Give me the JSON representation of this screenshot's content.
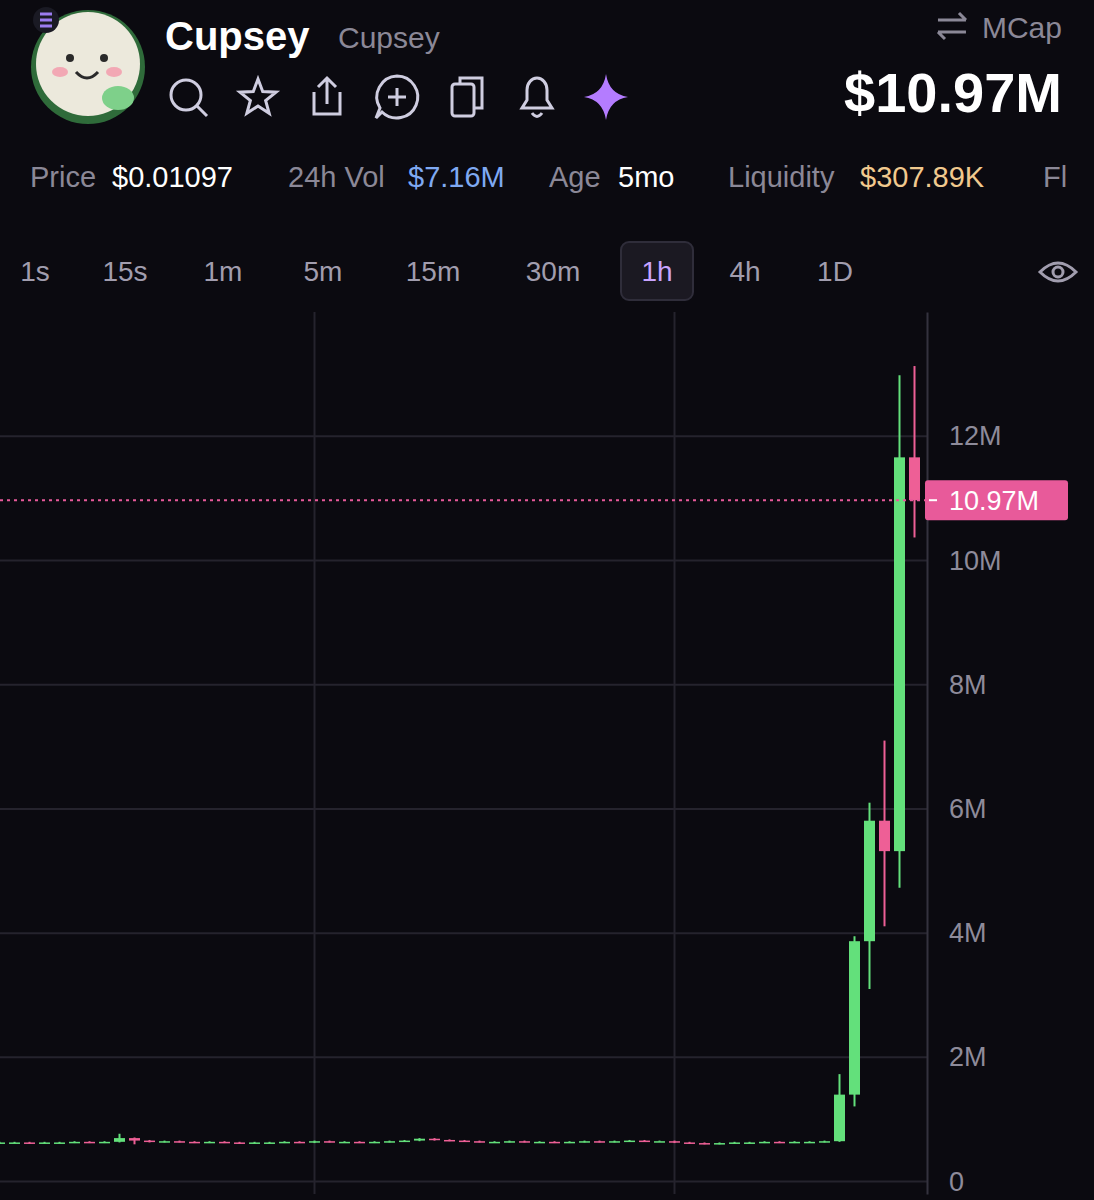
{
  "header": {
    "name": "Cupsey",
    "symbol": "Cupsey",
    "mcap_label": "MCap",
    "mcap": "$10.97M"
  },
  "stats": [
    {
      "label": "Price",
      "value": "$0.01097"
    },
    {
      "label": "24h Vol",
      "value": "$7.16M"
    },
    {
      "label": "Age",
      "value": "5mo"
    },
    {
      "label": "Liquidity",
      "value": "$307.89K"
    },
    {
      "label": "Fl"
    }
  ],
  "timeframes": {
    "options": [
      "1s",
      "15s",
      "1m",
      "5m",
      "15m",
      "30m",
      "1h",
      "4h",
      "1D"
    ],
    "selected": "1h"
  },
  "chart_data": {
    "type": "candlestick",
    "categories": [
      null,
      null,
      null,
      null,
      null,
      null,
      null,
      null,
      null,
      null,
      null,
      null,
      null,
      null,
      null,
      null,
      null,
      null,
      null,
      null,
      null,
      null,
      null,
      null,
      null,
      null,
      null,
      null,
      null,
      null,
      null,
      null,
      null,
      null,
      null,
      null,
      null,
      null,
      null,
      null,
      null,
      null,
      null,
      null,
      null,
      null,
      null,
      null,
      null,
      null,
      null,
      null,
      null,
      null,
      null,
      null,
      null,
      null,
      null,
      null,
      null,
      null
    ],
    "open": [
      0.62,
      0.63,
      0.63,
      0.62,
      0.63,
      0.63,
      0.64,
      0.63,
      0.64,
      0.7,
      0.66,
      0.64,
      0.65,
      0.64,
      0.63,
      0.64,
      0.63,
      0.62,
      0.63,
      0.63,
      0.64,
      0.63,
      0.65,
      0.64,
      0.64,
      0.63,
      0.64,
      0.65,
      0.66,
      0.69,
      0.67,
      0.66,
      0.65,
      0.64,
      0.64,
      0.65,
      0.64,
      0.64,
      0.63,
      0.64,
      0.65,
      0.64,
      0.65,
      0.66,
      0.65,
      0.65,
      0.63,
      0.62,
      0.61,
      0.62,
      0.63,
      0.63,
      0.64,
      0.63,
      0.64,
      0.64,
      0.65,
      1.4,
      3.87,
      5.81,
      5.32,
      11.66
    ],
    "high": [
      0.64,
      0.64,
      0.64,
      0.64,
      0.64,
      0.65,
      0.65,
      0.65,
      0.77,
      0.71,
      0.67,
      0.66,
      0.66,
      0.65,
      0.65,
      0.65,
      0.64,
      0.64,
      0.64,
      0.65,
      0.65,
      0.66,
      0.66,
      0.65,
      0.65,
      0.65,
      0.66,
      0.67,
      0.7,
      0.7,
      0.68,
      0.67,
      0.66,
      0.65,
      0.66,
      0.66,
      0.65,
      0.65,
      0.65,
      0.66,
      0.66,
      0.66,
      0.67,
      0.67,
      0.66,
      0.66,
      0.64,
      0.63,
      0.63,
      0.64,
      0.64,
      0.65,
      0.65,
      0.65,
      0.65,
      0.66,
      1.73,
      3.95,
      6.1,
      7.1,
      12.98,
      13.13
    ],
    "low": [
      0.61,
      0.62,
      0.61,
      0.61,
      0.62,
      0.62,
      0.62,
      0.62,
      0.63,
      0.6,
      0.63,
      0.63,
      0.63,
      0.62,
      0.62,
      0.62,
      0.61,
      0.61,
      0.62,
      0.62,
      0.62,
      0.62,
      0.63,
      0.63,
      0.62,
      0.62,
      0.63,
      0.64,
      0.65,
      0.66,
      0.65,
      0.64,
      0.63,
      0.63,
      0.63,
      0.63,
      0.63,
      0.62,
      0.62,
      0.63,
      0.63,
      0.63,
      0.64,
      0.64,
      0.64,
      0.62,
      0.61,
      0.6,
      0.6,
      0.61,
      0.62,
      0.62,
      0.62,
      0.62,
      0.63,
      0.63,
      0.64,
      1.21,
      3.1,
      4.11,
      4.73,
      10.37
    ],
    "close": [
      0.63,
      0.63,
      0.62,
      0.63,
      0.63,
      0.64,
      0.63,
      0.64,
      0.7,
      0.66,
      0.64,
      0.65,
      0.64,
      0.63,
      0.64,
      0.63,
      0.62,
      0.63,
      0.63,
      0.64,
      0.63,
      0.65,
      0.64,
      0.64,
      0.63,
      0.64,
      0.65,
      0.66,
      0.69,
      0.67,
      0.66,
      0.65,
      0.64,
      0.64,
      0.65,
      0.64,
      0.64,
      0.63,
      0.64,
      0.65,
      0.64,
      0.65,
      0.66,
      0.65,
      0.65,
      0.63,
      0.62,
      0.61,
      0.62,
      0.63,
      0.63,
      0.64,
      0.63,
      0.64,
      0.64,
      0.65,
      1.4,
      3.87,
      5.81,
      5.32,
      11.66,
      10.97
    ],
    "ylim": [
      -0.2,
      14
    ],
    "yticks": [
      0,
      {
        "value": 2,
        "label": "2M"
      },
      {
        "value": 4,
        "label": "4M"
      },
      {
        "value": 6,
        "label": "6M"
      },
      {
        "value": 8,
        "label": "8M"
      },
      {
        "value": 10,
        "label": "10M"
      },
      {
        "value": 12,
        "label": "12M"
      }
    ],
    "xticks": [
      21,
      45
    ],
    "grid": true,
    "tick_labels": "y",
    "price_line": {
      "value": 10.97,
      "label": "10.97M"
    }
  }
}
